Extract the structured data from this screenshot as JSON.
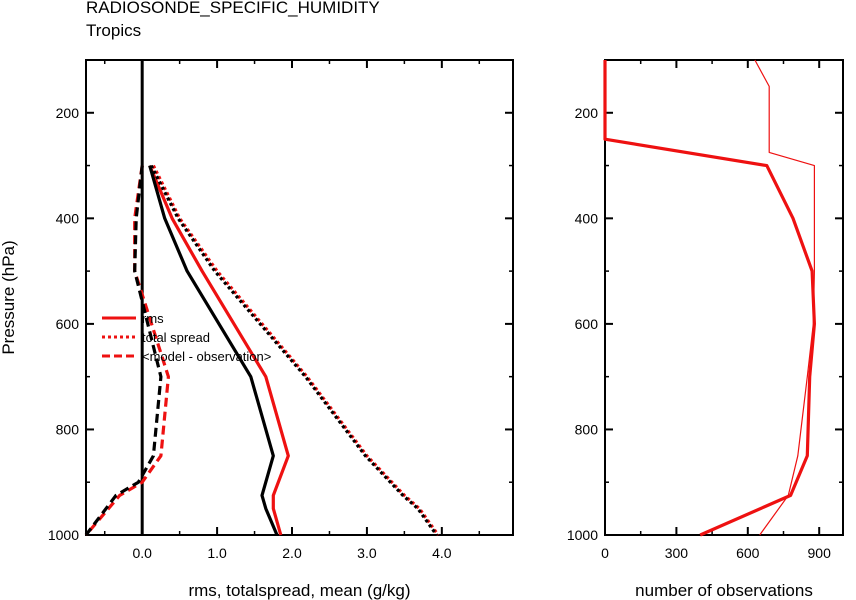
{
  "page": {
    "title": "RADIOSONDE_SPECIFIC_HUMIDITY",
    "subtitle": "Tropics"
  },
  "colors": {
    "red": "#ee1111",
    "black": "#000000",
    "axis": "#000000"
  },
  "chart_data": [
    {
      "type": "line",
      "xlabel": "rms, totalspread, mean (g/kg)",
      "ylabel": "Pressure (hPa)",
      "xlim": [
        -0.75,
        4.95
      ],
      "ylim": [
        1000,
        100
      ],
      "xticks": [
        0.0,
        1.0,
        2.0,
        3.0,
        4.0
      ],
      "xtick_labels": [
        "0.0",
        "1.0",
        "2.0",
        "3.0",
        "4.0"
      ],
      "yticks": [
        200,
        400,
        600,
        800,
        1000
      ],
      "ytick_labels": [
        "200",
        "400",
        "600",
        "800",
        "1000"
      ],
      "x_minor_ticks": [
        -0.5,
        0.5,
        1.5,
        2.5,
        3.5,
        4.5
      ],
      "y_minor_ticks": [
        100,
        300,
        500,
        700,
        900
      ],
      "vline_at_x": 0,
      "legend": {
        "placement": "middle-left",
        "entries": [
          {
            "label": "rms",
            "style": "solid"
          },
          {
            "label": "total spread",
            "style": "dotted"
          },
          {
            "label": "<model - observation>",
            "style": "dashed"
          }
        ]
      },
      "series": [
        {
          "color": "red",
          "style": "solid",
          "x": [
            0.1,
            0.4,
            0.8,
            1.65,
            1.95,
            1.75,
            1.75,
            1.85
          ],
          "y": [
            300,
            400,
            500,
            700,
            850,
            925,
            950,
            1000
          ]
        },
        {
          "color": "black",
          "style": "solid",
          "x": [
            0.1,
            0.3,
            0.6,
            1.45,
            1.75,
            1.6,
            1.65,
            1.8
          ],
          "y": [
            300,
            400,
            500,
            700,
            850,
            925,
            950,
            1000
          ]
        },
        {
          "color": "red",
          "style": "dotted",
          "x": [
            0.15,
            0.5,
            1.0,
            2.2,
            3.0,
            3.5,
            3.7,
            3.95
          ],
          "y": [
            300,
            400,
            500,
            700,
            850,
            925,
            950,
            1000
          ]
        },
        {
          "color": "black",
          "style": "dotted",
          "x": [
            0.12,
            0.48,
            0.97,
            2.18,
            2.98,
            3.48,
            3.68,
            3.93
          ],
          "y": [
            300,
            400,
            500,
            700,
            850,
            925,
            950,
            1000
          ]
        },
        {
          "color": "red",
          "style": "dashed",
          "x": [
            0.0,
            -0.1,
            -0.1,
            0.35,
            0.25,
            0.0,
            -0.3,
            -0.75
          ],
          "y": [
            300,
            400,
            500,
            700,
            850,
            900,
            925,
            1000
          ]
        },
        {
          "color": "black",
          "style": "dashed",
          "x": [
            0.0,
            -0.08,
            -0.1,
            0.25,
            0.15,
            -0.05,
            -0.35,
            -0.75
          ],
          "y": [
            300,
            400,
            500,
            700,
            850,
            900,
            925,
            1000
          ]
        }
      ]
    },
    {
      "type": "line",
      "xlabel": "number of observations",
      "ylabel": "",
      "xlim": [
        0,
        1000
      ],
      "ylim": [
        1000,
        100
      ],
      "xticks": [
        0,
        300,
        600,
        900
      ],
      "xtick_labels": [
        "0",
        "300",
        "600",
        "900"
      ],
      "yticks": [
        200,
        400,
        600,
        800,
        1000
      ],
      "ytick_labels": [
        "200",
        "400",
        "600",
        "800",
        "1000"
      ],
      "x_minor_ticks": [
        150,
        450,
        750
      ],
      "y_minor_ticks": [
        100,
        300,
        500,
        700,
        900
      ],
      "series": [
        {
          "color": "red",
          "style": "solid",
          "weight": "thick",
          "x": [
            0,
            0,
            680,
            790,
            870,
            880,
            860,
            850,
            780,
            400
          ],
          "y": [
            100,
            250,
            300,
            400,
            500,
            600,
            700,
            850,
            925,
            1000
          ]
        },
        {
          "color": "red",
          "style": "solid",
          "weight": "thin",
          "x": [
            630,
            690,
            690,
            880,
            880,
            875,
            850,
            810,
            770,
            650
          ],
          "y": [
            100,
            150,
            275,
            300,
            500,
            600,
            700,
            850,
            925,
            1000
          ]
        }
      ]
    }
  ]
}
